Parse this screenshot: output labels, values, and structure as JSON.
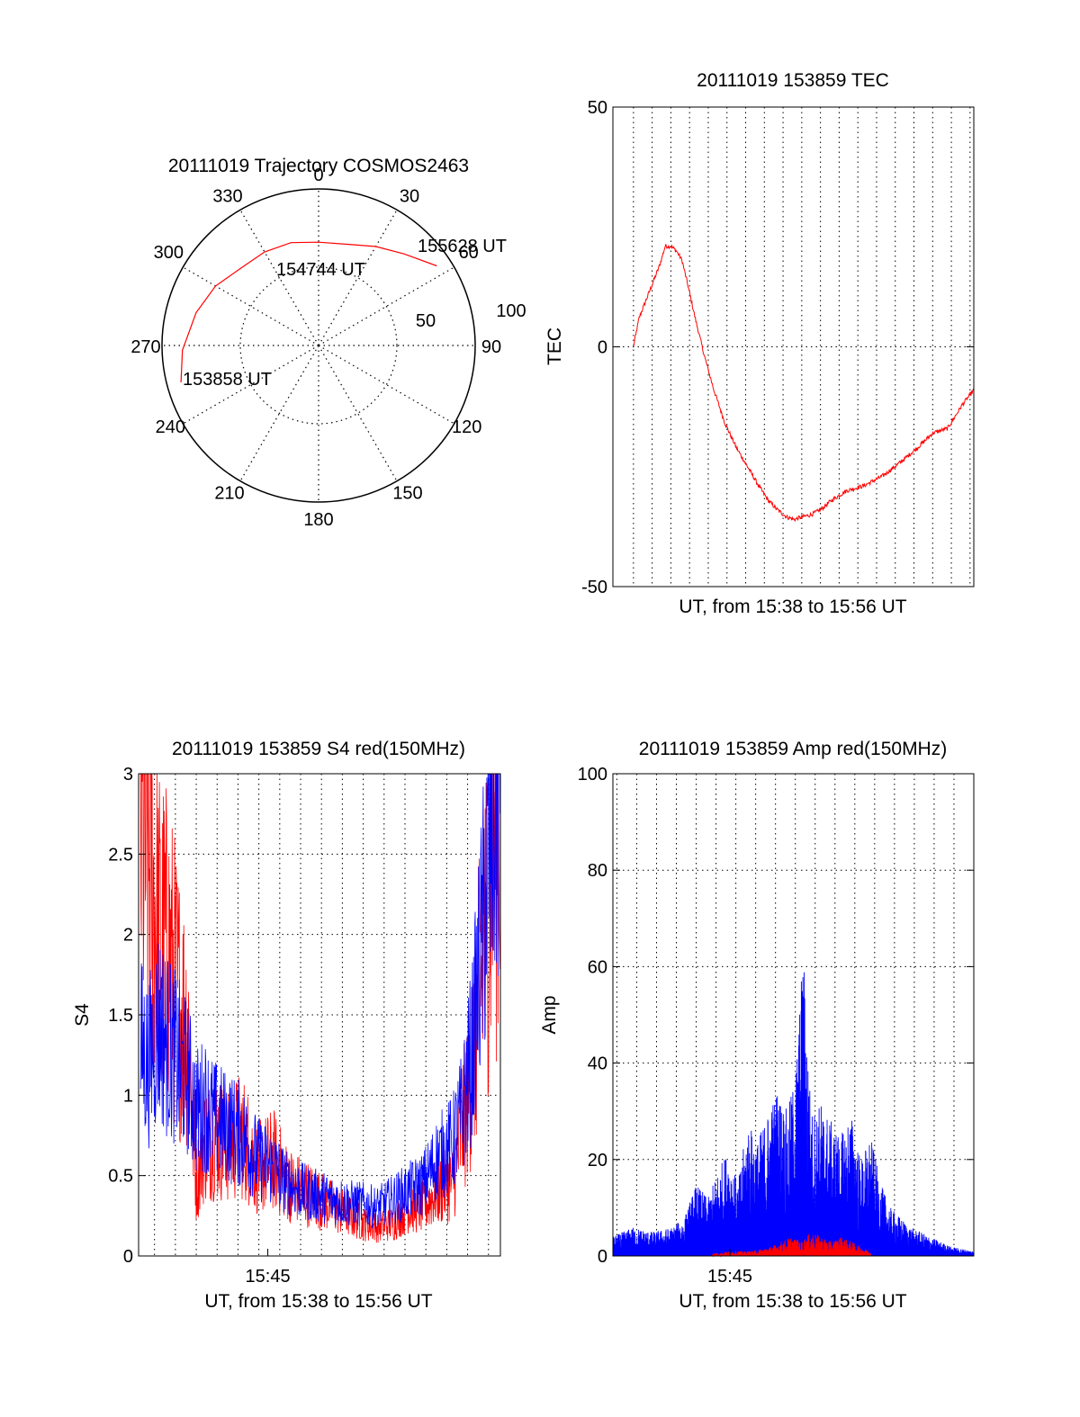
{
  "colors": {
    "red": "#ff0000",
    "blue": "#0000ff",
    "black": "#000000",
    "background": "#ffffff"
  },
  "polar": {
    "title": "20111019 Trajectory COSMOS2463",
    "azimuth_labels": [
      "0",
      "30",
      "60",
      "90",
      "120",
      "150",
      "180",
      "210",
      "240",
      "270",
      "300",
      "330"
    ],
    "radial_labels": [
      "50",
      "100"
    ],
    "chart_data": {
      "type": "polar",
      "title": "20111019 Trajectory COSMOS2463",
      "description_units": "azimuth in degrees clockwise from north, radius = zenith distance (0 = center, 100 = edge)",
      "rings": [
        50,
        100
      ],
      "spokes_deg": [
        0,
        30,
        60,
        90,
        120,
        150,
        180,
        210,
        240,
        270,
        300,
        330
      ],
      "trajectory": [
        {
          "az": 255,
          "r": 91
        },
        {
          "az": 268,
          "r": 87
        },
        {
          "az": 285,
          "r": 81
        },
        {
          "az": 300,
          "r": 76
        },
        {
          "az": 315,
          "r": 70
        },
        {
          "az": 330,
          "r": 69
        },
        {
          "az": 345,
          "r": 68
        },
        {
          "az": 0,
          "r": 66
        },
        {
          "az": 15,
          "r": 67
        },
        {
          "az": 30,
          "r": 73
        },
        {
          "az": 43,
          "r": 80
        },
        {
          "az": 56,
          "r": 91
        }
      ],
      "annotations": [
        {
          "text": "153858 UT",
          "az": 255,
          "r": 91
        },
        {
          "text": "154744 UT",
          "az": 330,
          "r": 69
        },
        {
          "text": "155628 UT",
          "az": 56,
          "r": 91
        }
      ]
    }
  },
  "tec": {
    "title": "20111019 153859 TEC",
    "ylabel": "TEC",
    "xlabel": "UT, from 15:38 to 15:56 UT",
    "yticks": [
      "-50",
      "0",
      "50"
    ],
    "chart_data": {
      "type": "line",
      "title": "20111019 153859 TEC",
      "xlabel": "UT, from 15:38 to 15:56 UT",
      "ylabel": "TEC",
      "x_units": "minutes after 15:38:59 UT",
      "xlim": [
        -1.1,
        18.2
      ],
      "ylim": [
        -50,
        50
      ],
      "series": [
        {
          "color": "#ff0000",
          "x": [
            0,
            0.3,
            0.6,
            1.0,
            1.4,
            1.7,
            2.0,
            2.3,
            2.6,
            2.9,
            3.3,
            3.8,
            4.3,
            4.9,
            5.5,
            6.1,
            6.7,
            7.2,
            7.7,
            8.2,
            8.6,
            9.0,
            9.5,
            10.0,
            10.6,
            11.4,
            12.3,
            13.3,
            14.3,
            15.2,
            16.0,
            16.8,
            17.6,
            18.2
          ],
          "y": [
            0,
            6,
            9,
            13,
            17,
            21,
            21,
            20,
            18,
            13,
            6,
            -2,
            -9,
            -16,
            -21,
            -25,
            -29,
            -32,
            -34,
            -35.5,
            -36,
            -35.5,
            -35,
            -34,
            -32,
            -30,
            -29,
            -27,
            -24,
            -21,
            -18,
            -17,
            -12,
            -9
          ]
        }
      ]
    }
  },
  "s4": {
    "title": "20111019 153859 S4 red(150MHz)",
    "ylabel": "S4",
    "xlabel": "UT, from 15:38 to 15:56 UT",
    "xtick": "15:45",
    "yticks": [
      "0",
      "0.5",
      "1",
      "1.5",
      "2",
      "2.5",
      "3"
    ],
    "chart_data": {
      "type": "line",
      "title": "20111019 153859 S4 red(150MHz)",
      "xlabel": "UT, from 15:38 to 15:56 UT",
      "ylabel": "S4",
      "x_units": "minutes after 15:38:59 UT",
      "xlim": [
        0,
        18.2
      ],
      "ylim": [
        0,
        3
      ],
      "x_tick_labels": [
        {
          "x": 6.5,
          "label": "15:45"
        }
      ],
      "series": [
        {
          "color": "#ff0000",
          "x": [
            0.1,
            0.6,
            1.0,
            1.5,
            2.0,
            2.5,
            2.9,
            3.3,
            3.8,
            4.5,
            5.2,
            6.0,
            6.8,
            7.5,
            8.3,
            9.1,
            9.8,
            10.6,
            11.3,
            12.0,
            12.8,
            13.5,
            14.3,
            15.0,
            15.8,
            16.3,
            16.8,
            17.3,
            17.8,
            18.2
          ],
          "y": [
            2.6,
            2.4,
            2.0,
            1.9,
            1.6,
            1.4,
            0.45,
            0.7,
            0.75,
            0.7,
            0.75,
            0.55,
            0.6,
            0.45,
            0.4,
            0.35,
            0.3,
            0.25,
            0.2,
            0.18,
            0.2,
            0.3,
            0.3,
            0.4,
            0.45,
            0.8,
            1.2,
            1.8,
            2.5,
            2.8
          ]
        },
        {
          "color": "#0000ff",
          "x": [
            0.1,
            0.5,
            1.0,
            1.5,
            2.0,
            2.5,
            2.9,
            3.3,
            3.8,
            4.5,
            5.2,
            6.0,
            6.8,
            7.5,
            8.3,
            9.1,
            9.8,
            10.6,
            11.3,
            12.0,
            12.8,
            13.5,
            14.3,
            15.0,
            15.8,
            16.3,
            16.8,
            17.3,
            17.8,
            18.2
          ],
          "y": [
            1.3,
            1.2,
            1.45,
            1.3,
            1.2,
            1.1,
            0.9,
            0.95,
            0.85,
            0.8,
            0.75,
            0.6,
            0.55,
            0.45,
            0.4,
            0.37,
            0.35,
            0.33,
            0.32,
            0.3,
            0.35,
            0.4,
            0.45,
            0.6,
            0.7,
            0.9,
            1.3,
            2.0,
            2.7,
            2.9
          ]
        }
      ]
    }
  },
  "amp": {
    "title": "20111019 153859 Amp red(150MHz)",
    "ylabel": "Amp",
    "xlabel": "UT, from 15:38 to 15:56 UT",
    "xtick": "15:45",
    "yticks": [
      "0",
      "20",
      "40",
      "60",
      "80",
      "100"
    ],
    "chart_data": {
      "type": "area",
      "title": "20111019 153859 Amp red(150MHz)",
      "xlabel": "UT, from 15:38 to 15:56 UT",
      "ylabel": "Amp",
      "x_units": "minutes after 15:38:59 UT",
      "xlim": [
        0,
        18.2
      ],
      "ylim": [
        0,
        100
      ],
      "x_tick_labels": [
        {
          "x": 5.9,
          "label": "15:45"
        }
      ],
      "series": [
        {
          "color": "#0000ff",
          "x": [
            0,
            1,
            2,
            3,
            3.6,
            4.2,
            4.8,
            5.3,
            5.8,
            6.3,
            6.8,
            7.3,
            7.8,
            8.3,
            8.8,
            9.2,
            9.6,
            10.0,
            10.5,
            11.0,
            11.5,
            12.0,
            12.5,
            13.0,
            13.5,
            14.0,
            15.0,
            16.0,
            17.0,
            18.2
          ],
          "y": [
            4,
            6,
            5,
            6,
            8,
            15,
            12,
            18,
            22,
            15,
            28,
            24,
            30,
            35,
            30,
            38,
            65,
            30,
            32,
            28,
            25,
            30,
            20,
            25,
            15,
            10,
            6,
            4,
            2,
            1
          ]
        },
        {
          "color": "#ff0000",
          "x": [
            5.0,
            6.0,
            7.0,
            8.0,
            8.5,
            9.0,
            9.5,
            10.0,
            10.5,
            11.0,
            11.5,
            12.0,
            12.5,
            13.0
          ],
          "y": [
            0.5,
            1,
            1,
            2,
            3,
            4,
            3,
            5,
            4,
            3,
            4,
            3,
            2,
            1
          ]
        }
      ]
    }
  }
}
